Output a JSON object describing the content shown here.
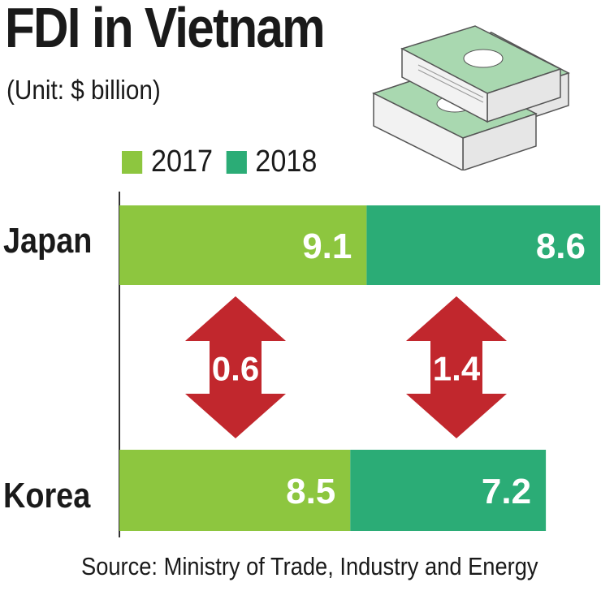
{
  "title": "FDI in Vietnam",
  "subtitle": "(Unit: $ billion)",
  "legend": [
    {
      "label": "2017",
      "color": "#8dc63f"
    },
    {
      "label": "2018",
      "color": "#2bac76"
    }
  ],
  "source": "Source: Ministry of Trade, Industry and Energy",
  "arrow_color": "#c1272d",
  "icon": "money-stacks-icon",
  "chart_data": {
    "type": "bar",
    "orientation": "horizontal",
    "stacked": true,
    "categories": [
      "Japan",
      "Korea"
    ],
    "series": [
      {
        "name": "2017",
        "values": [
          9.1,
          8.5
        ]
      },
      {
        "name": "2018",
        "values": [
          8.6,
          7.2
        ]
      }
    ],
    "annotations": [
      {
        "text": "0.6",
        "between": [
          "Japan",
          "Korea"
        ],
        "series": "2017"
      },
      {
        "text": "1.4",
        "between": [
          "Japan",
          "Korea"
        ],
        "series": "2018"
      }
    ],
    "title": "FDI in Vietnam",
    "xlabel": "",
    "ylabel": "",
    "grid": false,
    "legend_position": "top-left"
  }
}
